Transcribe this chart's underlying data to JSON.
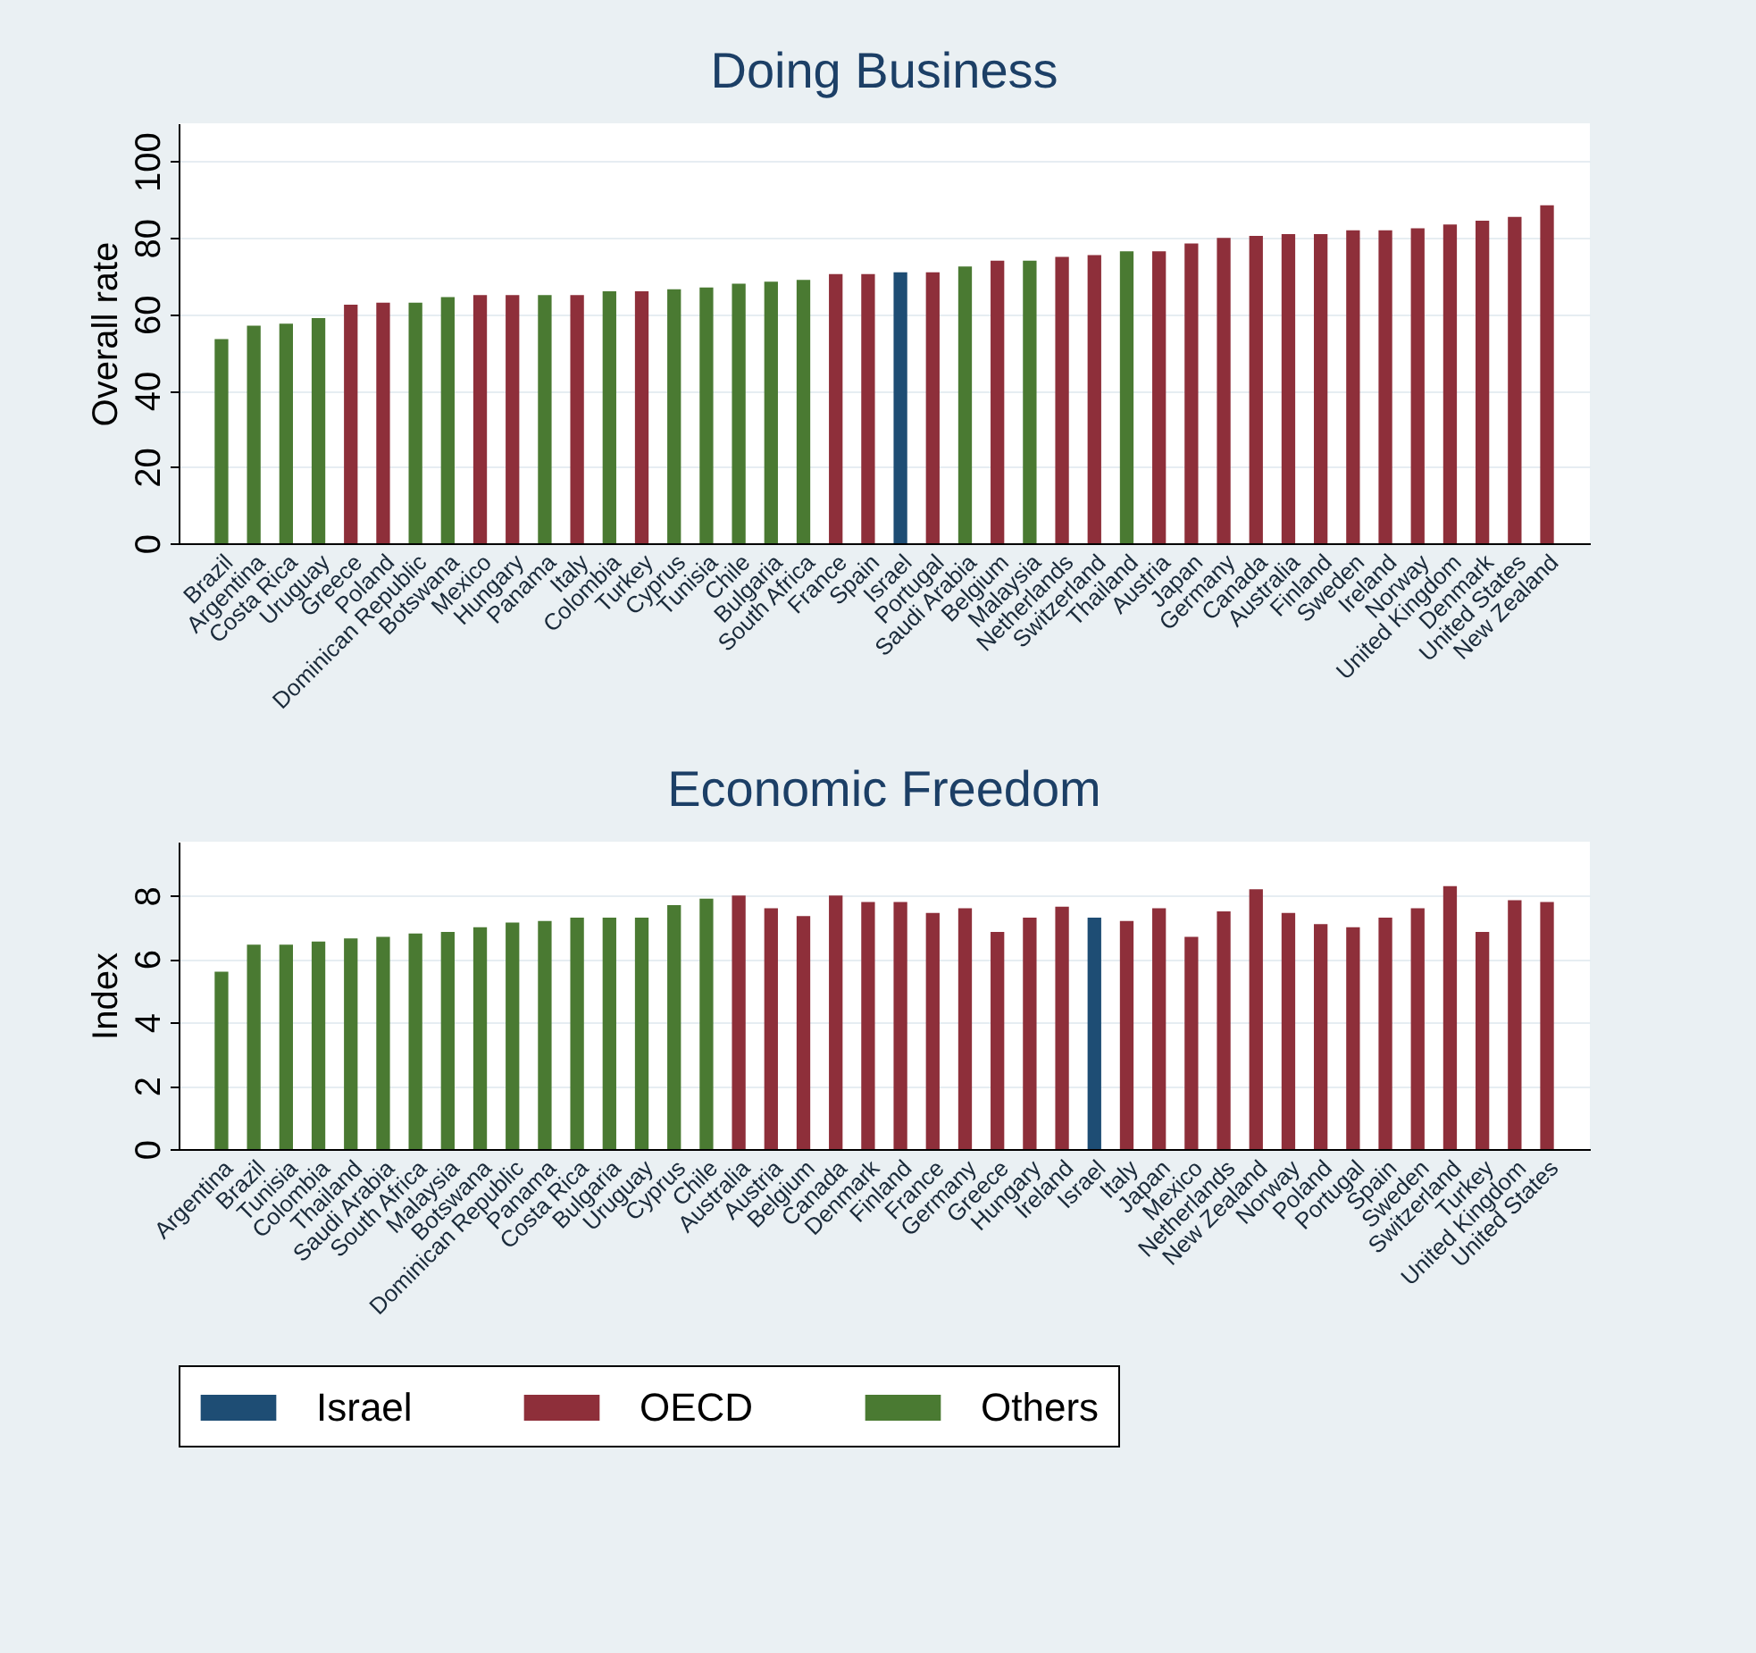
{
  "chart_data": [
    {
      "type": "bar",
      "title": "Doing Business",
      "ylabel": "Overall rate",
      "categories": [
        "Brazil",
        "Argentina",
        "Costa Rica",
        "Uruguay",
        "Greece",
        "Poland",
        "Dominican Republic",
        "Botswana",
        "Mexico",
        "Hungary",
        "Panama",
        "Italy",
        "Colombia",
        "Turkey",
        "Cyprus",
        "Tunisia",
        "Chile",
        "Bulgaria",
        "South Africa",
        "France",
        "Spain",
        "Israel",
        "Portugal",
        "Saudi Arabia",
        "Belgium",
        "Malaysia",
        "Netherlands",
        "Switzerland",
        "Thailand",
        "Austria",
        "Japan",
        "Germany",
        "Canada",
        "Australia",
        "Finland",
        "Sweden",
        "Ireland",
        "Norway",
        "United Kingdom",
        "Denmark",
        "United States",
        "New Zealand"
      ],
      "series": [
        {
          "name": "Israel",
          "color": "#1e4d74",
          "values": [
            null,
            null,
            null,
            null,
            null,
            null,
            null,
            null,
            null,
            null,
            null,
            null,
            null,
            null,
            null,
            null,
            null,
            null,
            null,
            null,
            null,
            71,
            null,
            null,
            null,
            null,
            null,
            null,
            null,
            null,
            null,
            null,
            null,
            null,
            null,
            null,
            null,
            null,
            null,
            null,
            null,
            null
          ]
        },
        {
          "name": "OECD",
          "color": "#8e2f3a",
          "values": [
            null,
            null,
            null,
            null,
            62.5,
            63,
            null,
            null,
            65,
            65,
            null,
            65,
            null,
            66,
            null,
            null,
            null,
            null,
            null,
            70.5,
            70.5,
            null,
            71,
            null,
            74,
            null,
            75,
            75.5,
            null,
            76.5,
            78.5,
            80,
            80.5,
            81,
            81,
            82,
            82,
            82.5,
            83.5,
            84.5,
            85.5,
            88.5
          ]
        },
        {
          "name": "Others",
          "color": "#4a7a32",
          "values": [
            53.5,
            57,
            57.5,
            59,
            null,
            null,
            63,
            64.5,
            null,
            null,
            65,
            null,
            66,
            null,
            66.5,
            67,
            68,
            68.5,
            69,
            null,
            null,
            null,
            null,
            72.5,
            null,
            74,
            null,
            null,
            76.5,
            null,
            null,
            null,
            null,
            null,
            null,
            null,
            null,
            null,
            null,
            null,
            null,
            null
          ]
        }
      ],
      "ylim": [
        0,
        110
      ],
      "yticks": [
        0,
        20,
        40,
        60,
        80,
        100
      ],
      "grid": "y",
      "legend": "bottom"
    },
    {
      "type": "bar",
      "title": "Economic Freedom",
      "ylabel": "Index",
      "categories": [
        "Argentina",
        "Brazil",
        "Tunisia",
        "Colombia",
        "Thailand",
        "Saudi Arabia",
        "South Africa",
        "Malaysia",
        "Botswana",
        "Dominican Republic",
        "Panama",
        "Costa Rica",
        "Bulgaria",
        "Uruguay",
        "Cyprus",
        "Chile",
        "Australia",
        "Austria",
        "Belgium",
        "Canada",
        "Denmark",
        "Finland",
        "France",
        "Germany",
        "Greece",
        "Hungary",
        "Ireland",
        "Israel",
        "Italy",
        "Japan",
        "Mexico",
        "Netherlands",
        "New Zealand",
        "Norway",
        "Poland",
        "Portugal",
        "Spain",
        "Sweden",
        "Switzerland",
        "Turkey",
        "United Kingdom",
        "United States"
      ],
      "series": [
        {
          "name": "Israel",
          "color": "#1e4d74",
          "values": [
            null,
            null,
            null,
            null,
            null,
            null,
            null,
            null,
            null,
            null,
            null,
            null,
            null,
            null,
            null,
            null,
            null,
            null,
            null,
            null,
            null,
            null,
            null,
            null,
            null,
            null,
            null,
            7.3,
            null,
            null,
            null,
            null,
            null,
            null,
            null,
            null,
            null,
            null,
            null,
            null,
            null,
            null
          ]
        },
        {
          "name": "OECD",
          "color": "#8e2f3a",
          "values": [
            null,
            null,
            null,
            null,
            null,
            null,
            null,
            null,
            null,
            null,
            null,
            null,
            null,
            null,
            null,
            null,
            8.0,
            7.6,
            7.35,
            8.0,
            7.8,
            7.8,
            7.45,
            7.6,
            6.85,
            7.3,
            7.65,
            null,
            7.2,
            7.6,
            6.7,
            7.5,
            8.2,
            7.45,
            7.1,
            7.0,
            7.3,
            7.6,
            8.3,
            6.85,
            7.85,
            7.8
          ]
        },
        {
          "name": "Others",
          "color": "#4a7a32",
          "values": [
            5.6,
            6.45,
            6.45,
            6.55,
            6.65,
            6.7,
            6.8,
            6.85,
            7.0,
            7.15,
            7.2,
            7.3,
            7.3,
            7.3,
            7.7,
            7.9,
            null,
            null,
            null,
            null,
            null,
            null,
            null,
            null,
            null,
            null,
            null,
            null,
            null,
            null,
            null,
            null,
            null,
            null,
            null,
            null,
            null,
            null,
            null,
            null,
            null,
            null
          ]
        }
      ],
      "ylim": [
        0,
        9.7
      ],
      "yticks": [
        0,
        2,
        4,
        6,
        8
      ],
      "grid": "y",
      "legend": "bottom"
    }
  ]
}
